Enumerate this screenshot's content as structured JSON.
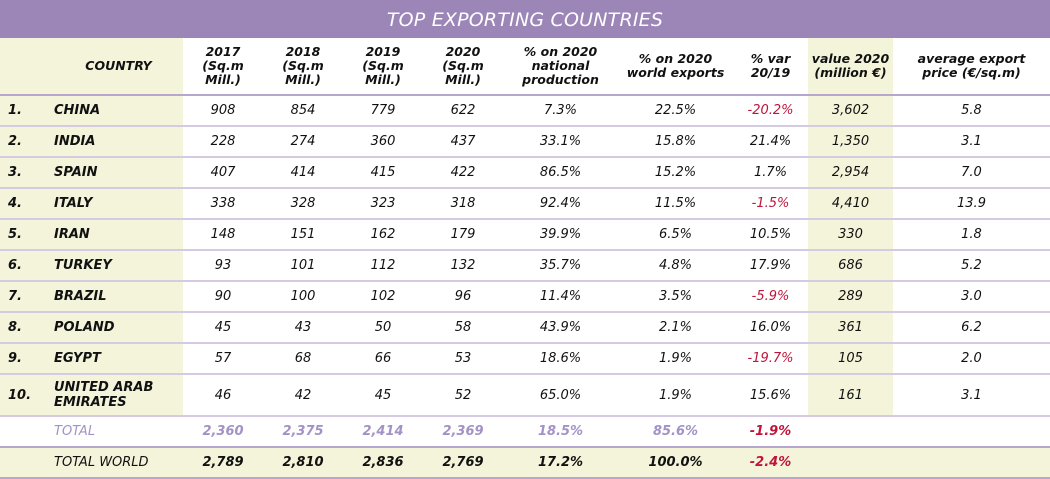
{
  "title": "TOP EXPORTING COUNTRIES",
  "headers": {
    "country": "COUNTRY",
    "y2017": [
      "2017",
      "(Sq.m Mill.)"
    ],
    "y2018": [
      "2018",
      "(Sq.m Mill.)"
    ],
    "y2019": [
      "2019",
      "(Sq.m Mill.)"
    ],
    "y2020": [
      "2020",
      "(Sq.m Mill.)"
    ],
    "national": [
      "% on 2020",
      "national",
      "production"
    ],
    "world": [
      "% on 2020",
      "world exports"
    ],
    "var": [
      "% var",
      "20/19"
    ],
    "value": [
      "value 2020",
      "(million €)"
    ],
    "price": [
      "average export",
      "price (€/sq.m)"
    ]
  },
  "rows": [
    {
      "rank": "1.",
      "country": [
        "CHINA"
      ],
      "y2017": "908",
      "y2018": "854",
      "y2019": "779",
      "y2020": "622",
      "national": "7.3%",
      "world": "22.5%",
      "var": "-20.2%",
      "var_negative": true,
      "value": "3,602",
      "price": "5.8"
    },
    {
      "rank": "2.",
      "country": [
        "INDIA"
      ],
      "y2017": "228",
      "y2018": "274",
      "y2019": "360",
      "y2020": "437",
      "national": "33.1%",
      "world": "15.8%",
      "var": "21.4%",
      "var_negative": false,
      "value": "1,350",
      "price": "3.1"
    },
    {
      "rank": "3.",
      "country": [
        "SPAIN"
      ],
      "y2017": "407",
      "y2018": "414",
      "y2019": "415",
      "y2020": "422",
      "national": "86.5%",
      "world": "15.2%",
      "var": "1.7%",
      "var_negative": false,
      "value": "2,954",
      "price": "7.0"
    },
    {
      "rank": "4.",
      "country": [
        "ITALY"
      ],
      "y2017": "338",
      "y2018": "328",
      "y2019": "323",
      "y2020": "318",
      "national": "92.4%",
      "world": "11.5%",
      "var": "-1.5%",
      "var_negative": true,
      "value": "4,410",
      "price": "13.9"
    },
    {
      "rank": "5.",
      "country": [
        "IRAN"
      ],
      "y2017": "148",
      "y2018": "151",
      "y2019": "162",
      "y2020": "179",
      "national": "39.9%",
      "world": "6.5%",
      "var": "10.5%",
      "var_negative": false,
      "value": "330",
      "price": "1.8"
    },
    {
      "rank": "6.",
      "country": [
        "TURKEY"
      ],
      "y2017": "93",
      "y2018": "101",
      "y2019": "112",
      "y2020": "132",
      "national": "35.7%",
      "world": "4.8%",
      "var": "17.9%",
      "var_negative": false,
      "value": "686",
      "price": "5.2"
    },
    {
      "rank": "7.",
      "country": [
        "BRAZIL"
      ],
      "y2017": "90",
      "y2018": "100",
      "y2019": "102",
      "y2020": "96",
      "national": "11.4%",
      "world": "3.5%",
      "var": "-5.9%",
      "var_negative": true,
      "value": "289",
      "price": "3.0"
    },
    {
      "rank": "8.",
      "country": [
        "POLAND"
      ],
      "y2017": "45",
      "y2018": "43",
      "y2019": "50",
      "y2020": "58",
      "national": "43.9%",
      "world": "2.1%",
      "var": "16.0%",
      "var_negative": false,
      "value": "361",
      "price": "6.2"
    },
    {
      "rank": "9.",
      "country": [
        "EGYPT"
      ],
      "y2017": "57",
      "y2018": "68",
      "y2019": "66",
      "y2020": "53",
      "national": "18.6%",
      "world": "1.9%",
      "var": "-19.7%",
      "var_negative": true,
      "value": "105",
      "price": "2.0"
    },
    {
      "rank": "10.",
      "country": [
        "UNITED ARAB",
        "EMIRATES"
      ],
      "y2017": "46",
      "y2018": "42",
      "y2019": "45",
      "y2020": "52",
      "national": "65.0%",
      "world": "1.9%",
      "var": "15.6%",
      "var_negative": false,
      "value": "161",
      "price": "3.1"
    }
  ],
  "total": {
    "label": "TOTAL",
    "y2017": "2,360",
    "y2018": "2,375",
    "y2019": "2,414",
    "y2020": "2,369",
    "national": "18.5%",
    "world": "85.6%",
    "var": "-1.9%"
  },
  "total_world": {
    "label": "TOTAL WORLD",
    "y2017": "2,789",
    "y2018": "2,810",
    "y2019": "2,836",
    "y2020": "2,769",
    "national": "17.2%",
    "world": "100.0%",
    "var": "-2.4%"
  },
  "colors": {
    "header": "#9c85b7",
    "highlight": "#f4f4da",
    "negative": "#c0143c",
    "total_text": "#a292c6"
  }
}
